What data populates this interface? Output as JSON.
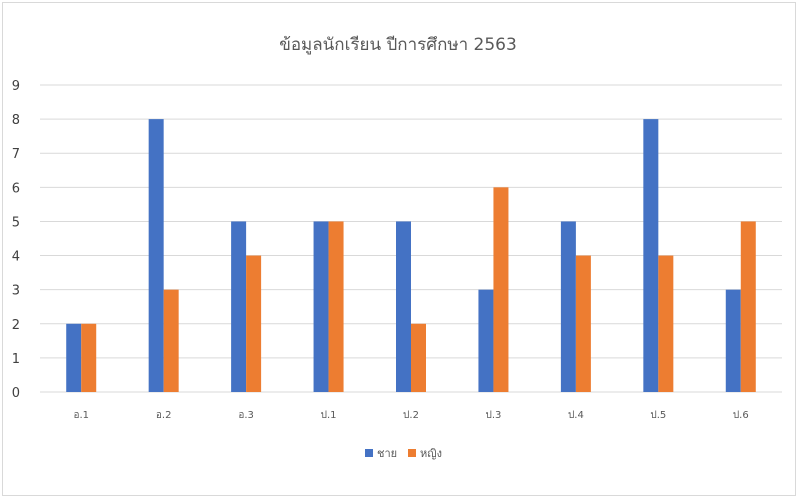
{
  "chart_data": {
    "type": "bar",
    "title": "ข้อมูลนักเรียน ปีการศึกษา 2563",
    "xlabel": "",
    "ylabel": "",
    "categories": [
      "อ.1",
      "อ.2",
      "อ.3",
      "ป.1",
      "ป.2",
      "ป.3",
      "ป.4",
      "ป.5",
      "ป.6"
    ],
    "series": [
      {
        "name": "ชาย",
        "values": [
          2,
          8,
          5,
          5,
          5,
          3,
          5,
          8,
          3
        ],
        "color": "#4472c4"
      },
      {
        "name": "หญิง",
        "values": [
          2,
          3,
          4,
          5,
          2,
          6,
          4,
          4,
          5
        ],
        "color": "#ed7d31"
      }
    ],
    "ylim": [
      0,
      9
    ],
    "yticks": [
      0,
      1,
      2,
      3,
      4,
      5,
      6,
      7,
      8,
      9
    ],
    "grid": true,
    "legend_position": "bottom-center",
    "gridline_color": "#d9d9d9"
  }
}
